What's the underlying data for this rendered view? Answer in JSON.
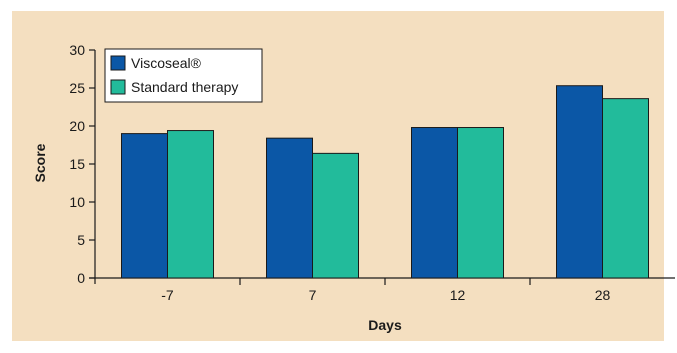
{
  "chart_data": {
    "type": "bar",
    "categories": [
      "-7",
      "7",
      "12",
      "28"
    ],
    "series": [
      {
        "name": "Viscoseal®",
        "values": [
          19.0,
          18.4,
          19.8,
          25.3
        ],
        "color": "#0b57a6"
      },
      {
        "name": "Standard therapy",
        "values": [
          19.4,
          16.4,
          19.8,
          23.6
        ],
        "color": "#22bb9b"
      }
    ],
    "xlabel": "Days",
    "ylabel": "Score",
    "ylim": [
      0,
      30
    ],
    "yticks": [
      "0",
      "5",
      "10",
      "15",
      "20",
      "25",
      "30"
    ],
    "legend": "top-left",
    "background": "#f4dfc0",
    "grid": false
  }
}
